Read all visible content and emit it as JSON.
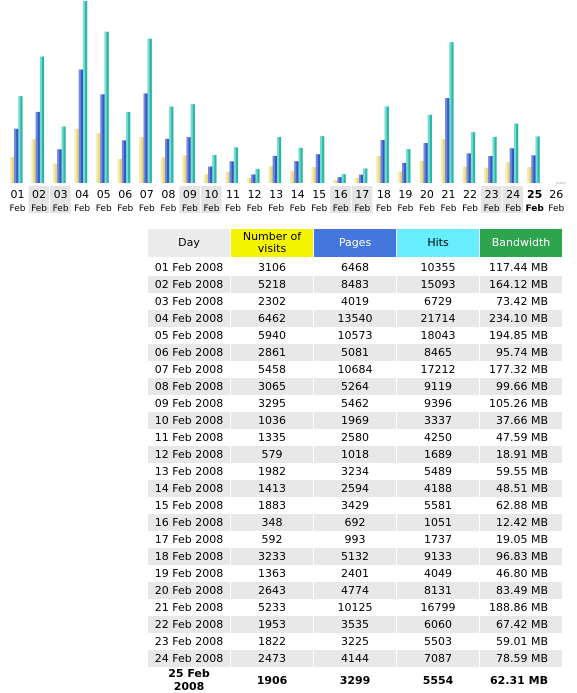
{
  "chart_data": {
    "type": "bar",
    "categories": [
      "01",
      "02",
      "03",
      "04",
      "05",
      "06",
      "07",
      "08",
      "09",
      "10",
      "11",
      "12",
      "13",
      "14",
      "15",
      "16",
      "17",
      "18",
      "19",
      "20",
      "21",
      "22",
      "23",
      "24",
      "25",
      "26"
    ],
    "month_label": "Feb",
    "highlight_day": "25",
    "weekend_days": [
      "02",
      "03",
      "09",
      "10",
      "16",
      "17",
      "23",
      "24"
    ],
    "series": [
      {
        "key": "visits",
        "color": "#e8d67a",
        "values": [
          3106,
          5218,
          2302,
          6462,
          5940,
          2861,
          5458,
          3065,
          3295,
          1036,
          1335,
          579,
          1982,
          1413,
          1883,
          348,
          592,
          3233,
          1363,
          2643,
          5233,
          1953,
          1822,
          2473,
          1906,
          0
        ]
      },
      {
        "key": "pages",
        "color": "#3a56c4",
        "values": [
          6468,
          8483,
          4019,
          13540,
          10573,
          5081,
          10684,
          5264,
          5462,
          1969,
          2580,
          1018,
          3234,
          2594,
          3429,
          692,
          993,
          5132,
          2401,
          4774,
          10125,
          3535,
          3225,
          4144,
          3299,
          0
        ]
      },
      {
        "key": "hits",
        "color": "#2bb6a8",
        "values": [
          10355,
          15093,
          6729,
          21714,
          18043,
          8465,
          17212,
          9119,
          9396,
          3337,
          4250,
          1689,
          5489,
          4188,
          5581,
          1051,
          1737,
          9133,
          4049,
          8131,
          16799,
          6060,
          5503,
          7087,
          5554,
          0
        ]
      }
    ],
    "grid": false
  },
  "table": {
    "headers": {
      "day": "Day",
      "visits": "Number of visits",
      "pages": "Pages",
      "hits": "Hits",
      "bandwidth": "Bandwidth"
    },
    "rows": [
      {
        "day": "01 Feb 2008",
        "visits": "3106",
        "pages": "6468",
        "hits": "10355",
        "bandwidth": "117.44 MB"
      },
      {
        "day": "02 Feb 2008",
        "visits": "5218",
        "pages": "8483",
        "hits": "15093",
        "bandwidth": "164.12 MB"
      },
      {
        "day": "03 Feb 2008",
        "visits": "2302",
        "pages": "4019",
        "hits": "6729",
        "bandwidth": "73.42 MB"
      },
      {
        "day": "04 Feb 2008",
        "visits": "6462",
        "pages": "13540",
        "hits": "21714",
        "bandwidth": "234.10 MB"
      },
      {
        "day": "05 Feb 2008",
        "visits": "5940",
        "pages": "10573",
        "hits": "18043",
        "bandwidth": "194.85 MB"
      },
      {
        "day": "06 Feb 2008",
        "visits": "2861",
        "pages": "5081",
        "hits": "8465",
        "bandwidth": "95.74 MB"
      },
      {
        "day": "07 Feb 2008",
        "visits": "5458",
        "pages": "10684",
        "hits": "17212",
        "bandwidth": "177.32 MB"
      },
      {
        "day": "08 Feb 2008",
        "visits": "3065",
        "pages": "5264",
        "hits": "9119",
        "bandwidth": "99.66 MB"
      },
      {
        "day": "09 Feb 2008",
        "visits": "3295",
        "pages": "5462",
        "hits": "9396",
        "bandwidth": "105.26 MB"
      },
      {
        "day": "10 Feb 2008",
        "visits": "1036",
        "pages": "1969",
        "hits": "3337",
        "bandwidth": "37.66 MB"
      },
      {
        "day": "11 Feb 2008",
        "visits": "1335",
        "pages": "2580",
        "hits": "4250",
        "bandwidth": "47.59 MB"
      },
      {
        "day": "12 Feb 2008",
        "visits": "579",
        "pages": "1018",
        "hits": "1689",
        "bandwidth": "18.91 MB"
      },
      {
        "day": "13 Feb 2008",
        "visits": "1982",
        "pages": "3234",
        "hits": "5489",
        "bandwidth": "59.55 MB"
      },
      {
        "day": "14 Feb 2008",
        "visits": "1413",
        "pages": "2594",
        "hits": "4188",
        "bandwidth": "48.51 MB"
      },
      {
        "day": "15 Feb 2008",
        "visits": "1883",
        "pages": "3429",
        "hits": "5581",
        "bandwidth": "62.88 MB"
      },
      {
        "day": "16 Feb 2008",
        "visits": "348",
        "pages": "692",
        "hits": "1051",
        "bandwidth": "12.42 MB"
      },
      {
        "day": "17 Feb 2008",
        "visits": "592",
        "pages": "993",
        "hits": "1737",
        "bandwidth": "19.05 MB"
      },
      {
        "day": "18 Feb 2008",
        "visits": "3233",
        "pages": "5132",
        "hits": "9133",
        "bandwidth": "96.83 MB"
      },
      {
        "day": "19 Feb 2008",
        "visits": "1363",
        "pages": "2401",
        "hits": "4049",
        "bandwidth": "46.80 MB"
      },
      {
        "day": "20 Feb 2008",
        "visits": "2643",
        "pages": "4774",
        "hits": "8131",
        "bandwidth": "83.49 MB"
      },
      {
        "day": "21 Feb 2008",
        "visits": "5233",
        "pages": "10125",
        "hits": "16799",
        "bandwidth": "188.86 MB"
      },
      {
        "day": "22 Feb 2008",
        "visits": "1953",
        "pages": "3535",
        "hits": "6060",
        "bandwidth": "67.42 MB"
      },
      {
        "day": "23 Feb 2008",
        "visits": "1822",
        "pages": "3225",
        "hits": "5503",
        "bandwidth": "59.01 MB"
      },
      {
        "day": "24 Feb 2008",
        "visits": "2473",
        "pages": "4144",
        "hits": "7087",
        "bandwidth": "78.59 MB"
      },
      {
        "day": "25 Feb 2008",
        "visits": "1906",
        "pages": "3299",
        "hits": "5554",
        "bandwidth": "62.31 MB"
      }
    ]
  }
}
